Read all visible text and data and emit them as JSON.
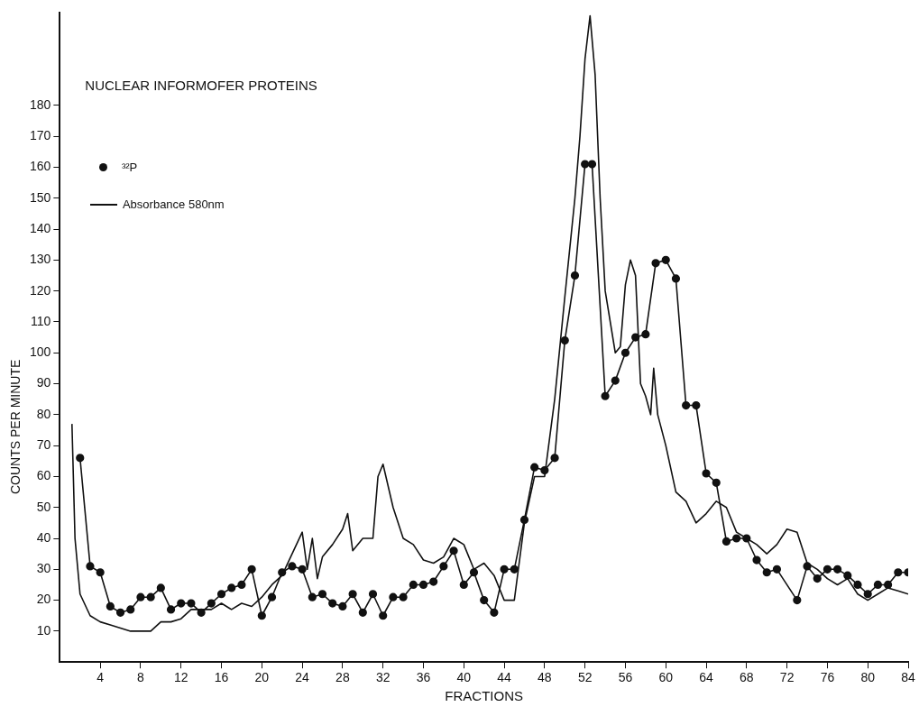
{
  "chart_data": {
    "type": "line",
    "title": "NUCLEAR INFORMOFER PROTEINS",
    "xlabel": "FRACTIONS",
    "ylabel": "COUNTS PER MINUTE",
    "legend": "left",
    "grid": false,
    "xlim": [
      0,
      84
    ],
    "xticks": [
      4,
      8,
      12,
      16,
      20,
      24,
      28,
      32,
      36,
      40,
      44,
      48,
      52,
      56,
      60,
      64,
      68,
      72,
      76,
      80,
      84
    ],
    "ylim": [
      0,
      210
    ],
    "yticks": [
      10,
      20,
      30,
      40,
      50,
      60,
      70,
      80,
      90,
      100,
      110,
      120,
      130,
      140,
      150,
      160,
      170,
      180
    ],
    "series": [
      {
        "name": "³²P",
        "color": "#111111",
        "marker": "circle",
        "x": [
          2,
          3,
          4,
          5,
          6,
          7,
          8,
          9,
          10,
          11,
          12,
          13,
          14,
          15,
          16,
          17,
          18,
          19,
          20,
          21,
          22,
          23,
          24,
          25,
          26,
          27,
          28,
          29,
          30,
          31,
          32,
          33,
          34,
          35,
          36,
          37,
          38,
          39,
          40,
          41,
          42,
          43,
          44,
          45,
          46,
          47,
          48,
          49,
          50,
          51,
          52,
          52.7,
          54,
          55,
          56,
          57,
          58,
          59,
          60,
          61,
          62,
          63,
          64,
          65,
          66,
          67,
          68,
          69,
          70,
          71,
          73,
          74,
          75,
          76,
          77,
          78,
          79,
          80,
          81,
          82,
          83,
          84
        ],
        "values": [
          66,
          31,
          29,
          18,
          16,
          17,
          21,
          21,
          24,
          17,
          19,
          19,
          16,
          19,
          22,
          24,
          25,
          30,
          15,
          21,
          29,
          31,
          30,
          21,
          22,
          19,
          18,
          22,
          16,
          22,
          15,
          21,
          21,
          25,
          25,
          26,
          31,
          36,
          25,
          29,
          20,
          16,
          30,
          30,
          46,
          63,
          62,
          66,
          104,
          125,
          161,
          161,
          86,
          91,
          100,
          105,
          106,
          129,
          130,
          124,
          83,
          83,
          61,
          58,
          39,
          40,
          40,
          33,
          29,
          30,
          20,
          31,
          27,
          30,
          30,
          28,
          25,
          22,
          25,
          25,
          29,
          29
        ]
      },
      {
        "name": "Absorbance 580nm",
        "color": "#111111",
        "marker": "none",
        "x": [
          1.2,
          1.5,
          2,
          3,
          4,
          5,
          6,
          7,
          8,
          9,
          10,
          11,
          12,
          13,
          14,
          15,
          16,
          17,
          18,
          19,
          20,
          21,
          22,
          23,
          24,
          24.5,
          25,
          25.5,
          26,
          27,
          28,
          28.5,
          29,
          30,
          31,
          31.5,
          32,
          33,
          34,
          35,
          36,
          37,
          38,
          39,
          40,
          41,
          42,
          43,
          44,
          45,
          46,
          47,
          48,
          49,
          50,
          51,
          51.5,
          52,
          52.5,
          53,
          53.5,
          54,
          55,
          55.5,
          56,
          56.5,
          57,
          57.5,
          58,
          58.5,
          58.8,
          59.2,
          60,
          61,
          62,
          63,
          64,
          65,
          66,
          67,
          68,
          69,
          70,
          71,
          72,
          73,
          74,
          75,
          76,
          77,
          78,
          79,
          80,
          81,
          82,
          83,
          84
        ],
        "values": [
          77,
          40,
          22,
          15,
          13,
          12,
          11,
          10,
          10,
          10,
          13,
          13,
          14,
          17,
          17,
          17,
          19,
          17,
          19,
          18,
          21,
          25,
          28,
          35,
          42,
          30,
          40,
          27,
          34,
          38,
          43,
          48,
          36,
          40,
          40,
          60,
          64,
          50,
          40,
          38,
          33,
          32,
          34,
          40,
          38,
          30,
          32,
          28,
          20,
          20,
          45,
          60,
          60,
          85,
          118,
          150,
          170,
          195,
          209,
          190,
          150,
          120,
          100,
          102,
          122,
          130,
          125,
          90,
          86,
          80,
          95,
          80,
          70,
          55,
          52,
          45,
          48,
          52,
          50,
          42,
          40,
          38,
          35,
          38,
          43,
          42,
          32,
          30,
          27,
          25,
          27,
          22,
          20,
          22,
          24,
          23,
          22
        ]
      }
    ]
  }
}
